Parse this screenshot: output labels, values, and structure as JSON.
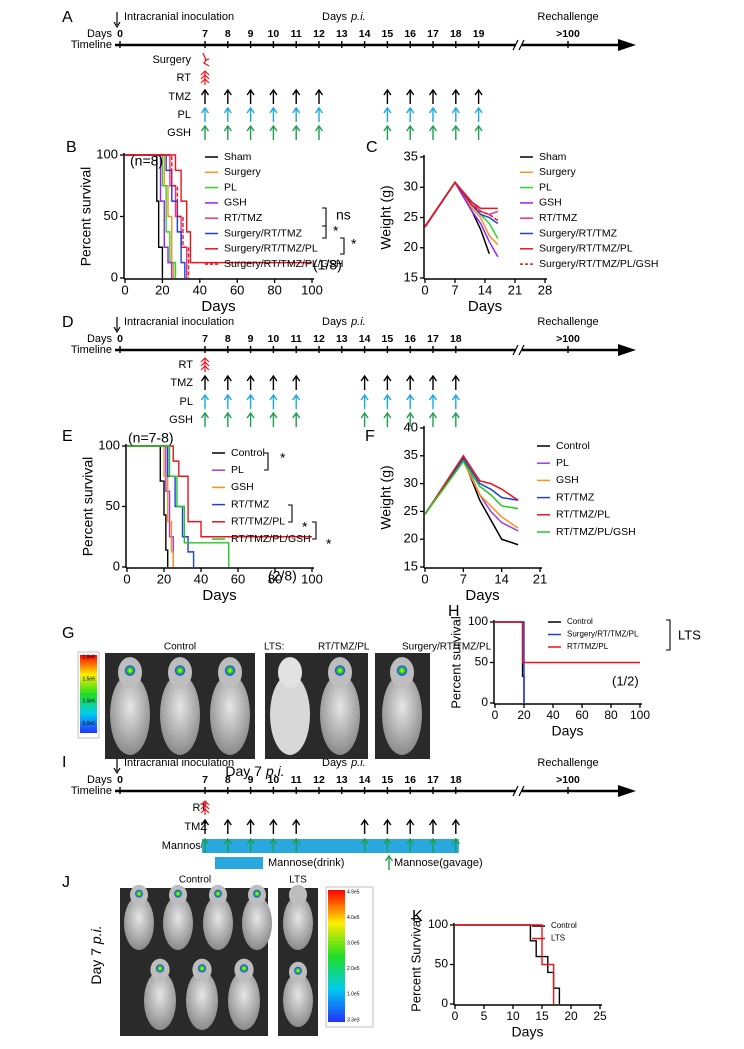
{
  "timelines": [
    {
      "label": "A",
      "start_note": "Intracranial inoculation",
      "center_title": "Days",
      "center_title_italic": "p.i.",
      "rechallenge": "Rechallenge",
      "days_row": "Days",
      "timeline_row": "Timeline",
      "ticks": [
        0,
        7,
        8,
        9,
        10,
        11,
        12,
        13,
        14,
        15,
        16,
        17,
        18,
        19,
        ">100"
      ],
      "rows": [
        {
          "label": "Surgery",
          "marker": "surgery",
          "color": "#e8141c",
          "days": [
            7
          ]
        },
        {
          "label": "RT",
          "marker": "double",
          "color": "#e8141c",
          "days": [
            7
          ]
        },
        {
          "label": "TMZ",
          "marker": "arrow",
          "color": "#000000",
          "days": [
            7,
            8,
            9,
            10,
            11,
            12,
            15,
            16,
            17,
            18,
            19
          ]
        },
        {
          "label": "PL",
          "marker": "arrow",
          "color": "#1aa7e0",
          "days": [
            7,
            8,
            9,
            10,
            11,
            12,
            15,
            16,
            17,
            18,
            19
          ]
        },
        {
          "label": "GSH",
          "marker": "arrow",
          "color": "#1e9e4e",
          "days": [
            7,
            8,
            9,
            10,
            11,
            12,
            15,
            16,
            17,
            18,
            19
          ]
        }
      ]
    },
    {
      "label": "D",
      "start_note": "Intracranial inoculation",
      "center_title": "Days",
      "center_title_italic": "p.i.",
      "rechallenge": "Rechallenge",
      "days_row": "Days",
      "timeline_row": "Timeline",
      "ticks": [
        0,
        7,
        8,
        9,
        10,
        11,
        12,
        13,
        14,
        15,
        16,
        17,
        18,
        ">100"
      ],
      "rows": [
        {
          "label": "RT",
          "marker": "double",
          "color": "#e8141c",
          "days": [
            7
          ]
        },
        {
          "label": "TMZ",
          "marker": "arrow",
          "color": "#000000",
          "days": [
            7,
            8,
            9,
            10,
            11,
            14,
            15,
            16,
            17,
            18
          ]
        },
        {
          "label": "PL",
          "marker": "arrow",
          "color": "#1aa7e0",
          "days": [
            7,
            8,
            9,
            10,
            11,
            14,
            15,
            16,
            17,
            18
          ]
        },
        {
          "label": "GSH",
          "marker": "arrow",
          "color": "#1e9e4e",
          "days": [
            7,
            8,
            9,
            10,
            11,
            14,
            15,
            16,
            17,
            18
          ]
        }
      ]
    },
    {
      "label": "I",
      "start_note": "Intracranial inoculation",
      "center_title": "Days",
      "center_title_italic": "p.i.",
      "rechallenge": "Rechallenge",
      "days_row": "Days",
      "timeline_row": "Timeline",
      "ticks": [
        0,
        7,
        8,
        9,
        10,
        11,
        12,
        13,
        14,
        15,
        16,
        17,
        18,
        ">100"
      ],
      "rows": [
        {
          "label": "RT",
          "marker": "double",
          "color": "#e8141c",
          "days": [
            7
          ]
        },
        {
          "label": "TMZ",
          "marker": "arrow",
          "color": "#000000",
          "days": [
            7,
            8,
            9,
            10,
            11,
            14,
            15,
            16,
            17,
            18
          ]
        },
        {
          "label": "Mannose",
          "marker": "arrow",
          "color": "#1e9e4e",
          "bar": [
            7,
            18
          ],
          "bar_color": "#29a8e0",
          "days": [
            7,
            8,
            9,
            10,
            11,
            14,
            15,
            16,
            17,
            18
          ]
        }
      ],
      "legend": [
        "Mannose(drink)",
        "Mannose(gavage)"
      ]
    }
  ],
  "chart_data": [
    {
      "label": "B",
      "type": "survival",
      "xlabel": "Days",
      "ylabel": "Percent survival",
      "xlim": [
        0,
        100
      ],
      "ylim": [
        0,
        100
      ],
      "xticks": [
        0,
        20,
        40,
        60,
        80,
        100
      ],
      "yticks": [
        0,
        50,
        100
      ],
      "annotations": [
        "(n=8)",
        "ns",
        "*",
        "*",
        "(1/8)"
      ],
      "series": [
        {
          "name": "Sham",
          "color": "#000000",
          "x": [
            0,
            15,
            17,
            18,
            20
          ],
          "values": [
            100,
            100,
            62.5,
            25,
            0
          ]
        },
        {
          "name": "Surgery",
          "color": "#f7941d",
          "x": [
            0,
            21,
            23,
            25,
            26
          ],
          "values": [
            100,
            75,
            50,
            12.5,
            0
          ]
        },
        {
          "name": "PL",
          "color": "#2bd92b",
          "x": [
            0,
            20,
            22,
            24,
            27
          ],
          "values": [
            100,
            75,
            37.5,
            12.5,
            0
          ]
        },
        {
          "name": "GSH",
          "color": "#a020f0",
          "x": [
            0,
            19,
            21,
            23,
            25
          ],
          "values": [
            100,
            62.5,
            25,
            12.5,
            0
          ]
        },
        {
          "name": "RT/TMZ",
          "color": "#e8318a",
          "x": [
            0,
            24,
            27,
            30,
            33
          ],
          "values": [
            100,
            75,
            50,
            25,
            0
          ]
        },
        {
          "name": "Surgery/RT/TMZ",
          "color": "#1f3fdc",
          "x": [
            0,
            22,
            25,
            28,
            30,
            32
          ],
          "values": [
            100,
            87.5,
            62.5,
            37.5,
            12.5,
            0
          ]
        },
        {
          "name": "Surgery/RT/TMZ/PL",
          "color": "#e8141c",
          "x": [
            0,
            27,
            30,
            33,
            35,
            100
          ],
          "values": [
            100,
            87.5,
            62.5,
            37.5,
            12.5,
            12.5
          ]
        },
        {
          "name": "Surgery/RT/TMZ/PL/GSH",
          "color": "#e8141c",
          "dash": true,
          "x": [
            0,
            25,
            28,
            31,
            34
          ],
          "values": [
            100,
            75,
            50,
            25,
            0
          ]
        }
      ]
    },
    {
      "label": "C",
      "type": "line",
      "xlabel": "Days",
      "ylabel": "Weight (g)",
      "xlim": [
        0,
        28
      ],
      "ylim": [
        15,
        35
      ],
      "xticks": [
        0,
        7,
        14,
        21,
        28
      ],
      "yticks": [
        15,
        20,
        25,
        30,
        35
      ],
      "series": [
        {
          "name": "Sham",
          "color": "#000000",
          "x": [
            0,
            7,
            11,
            13,
            15
          ],
          "values": [
            23.5,
            30.8,
            26,
            23,
            19
          ]
        },
        {
          "name": "Surgery",
          "color": "#f7941d",
          "x": [
            0,
            7,
            11,
            13,
            15,
            17
          ],
          "values": [
            23.5,
            30.8,
            26.5,
            25,
            22,
            20.5
          ]
        },
        {
          "name": "PL",
          "color": "#2bd92b",
          "x": [
            0,
            7,
            11,
            13,
            15,
            17
          ],
          "values": [
            23.4,
            30.8,
            27,
            25.5,
            24,
            21.5
          ]
        },
        {
          "name": "GSH",
          "color": "#a020f0",
          "x": [
            0,
            7,
            11,
            13,
            15,
            17
          ],
          "values": [
            23.5,
            30.8,
            26,
            24,
            21,
            18.5
          ]
        },
        {
          "name": "RT/TMZ",
          "color": "#e8318a",
          "x": [
            0,
            7,
            11,
            13,
            15,
            17
          ],
          "values": [
            23.4,
            30.8,
            27.5,
            26,
            25.5,
            26
          ]
        },
        {
          "name": "Surgery/RT/TMZ",
          "color": "#1f3fdc",
          "x": [
            0,
            7,
            11,
            13,
            15,
            17
          ],
          "values": [
            23.5,
            30.8,
            27,
            25.5,
            25,
            24
          ]
        },
        {
          "name": "Surgery/RT/TMZ/PL",
          "color": "#e8141c",
          "x": [
            0,
            7,
            11,
            13,
            15,
            17
          ],
          "values": [
            23.5,
            30.8,
            27.5,
            26.5,
            26.5,
            26.5
          ]
        },
        {
          "name": "Surgery/RT/TMZ/PL/GSH",
          "color": "#e8141c",
          "dash": true,
          "x": [
            0,
            7,
            11,
            13,
            15,
            17
          ],
          "values": [
            23.5,
            30.8,
            27,
            26,
            25.5,
            24.5
          ]
        }
      ]
    },
    {
      "label": "E",
      "type": "survival",
      "xlabel": "Days",
      "ylabel": "Percent survival",
      "xlim": [
        0,
        100
      ],
      "ylim": [
        0,
        100
      ],
      "xticks": [
        0,
        20,
        40,
        60,
        80,
        100
      ],
      "yticks": [
        0,
        50,
        100
      ],
      "annotations": [
        "(n=7-8)",
        "*",
        "*",
        "*",
        "(2/8)"
      ],
      "series": [
        {
          "name": "Control",
          "color": "#000000",
          "x": [
            0,
            18,
            20,
            21,
            22
          ],
          "values": [
            100,
            71,
            43,
            14,
            0
          ]
        },
        {
          "name": "PL",
          "color": "#a23be0",
          "x": [
            0,
            21,
            23,
            25
          ],
          "values": [
            100,
            62.5,
            25,
            0
          ]
        },
        {
          "name": "GSH",
          "color": "#f7941d",
          "x": [
            0,
            20,
            22,
            24,
            25
          ],
          "values": [
            100,
            75,
            37.5,
            12.5,
            0
          ]
        },
        {
          "name": "RT/TMZ",
          "color": "#1f3fdc",
          "x": [
            0,
            22,
            26,
            30,
            33,
            36
          ],
          "values": [
            100,
            75,
            50,
            25,
            12.5,
            0
          ]
        },
        {
          "name": "RT/TMZ/PL",
          "color": "#e8141c",
          "x": [
            0,
            25,
            28,
            33,
            40,
            100
          ],
          "values": [
            100,
            87.5,
            75,
            37.5,
            25,
            25
          ]
        },
        {
          "name": "RT/TMZ/PL/GSH",
          "color": "#22c922",
          "x": [
            0,
            23,
            27,
            31,
            55
          ],
          "values": [
            100,
            75,
            50,
            20,
            0
          ]
        }
      ]
    },
    {
      "label": "F",
      "type": "line",
      "xlabel": "Days",
      "ylabel": "Weight (g)",
      "xlim": [
        0,
        21
      ],
      "ylim": [
        15,
        40
      ],
      "xticks": [
        0,
        7,
        14,
        21
      ],
      "yticks": [
        15,
        20,
        25,
        30,
        35,
        40
      ],
      "series": [
        {
          "name": "Control",
          "color": "#000000",
          "x": [
            0,
            7,
            10,
            12,
            14,
            17
          ],
          "values": [
            24.5,
            34.5,
            27,
            23.5,
            20,
            19
          ]
        },
        {
          "name": "PL",
          "color": "#a23be0",
          "x": [
            0,
            7,
            10,
            12,
            14,
            17
          ],
          "values": [
            24.5,
            34.5,
            28,
            25,
            23,
            21.5
          ]
        },
        {
          "name": "GSH",
          "color": "#f7941d",
          "x": [
            0,
            7,
            10,
            12,
            14,
            17
          ],
          "values": [
            24.5,
            34,
            28,
            26,
            24,
            22
          ]
        },
        {
          "name": "RT/TMZ",
          "color": "#1f3fdc",
          "x": [
            0,
            7,
            10,
            12,
            14,
            17
          ],
          "values": [
            24.5,
            34.5,
            30,
            29,
            27.5,
            27
          ]
        },
        {
          "name": "RT/TMZ/PL",
          "color": "#e8141c",
          "x": [
            0,
            7,
            10,
            12,
            14,
            17
          ],
          "values": [
            24.5,
            35,
            30.5,
            30,
            29,
            27
          ]
        },
        {
          "name": "RT/TMZ/PL/GSH",
          "color": "#22c922",
          "x": [
            0,
            7,
            10,
            12,
            14,
            17
          ],
          "values": [
            24.5,
            34,
            29.5,
            28,
            26,
            25.5
          ]
        }
      ]
    },
    {
      "label": "H",
      "type": "survival",
      "xlabel": "Days",
      "ylabel": "Percent survival",
      "xlim": [
        0,
        100
      ],
      "ylim": [
        0,
        100
      ],
      "xticks": [
        0,
        20,
        40,
        60,
        80,
        100
      ],
      "yticks": [
        0,
        50,
        100
      ],
      "annotations": [
        "LTS",
        "(1/2)"
      ],
      "series": [
        {
          "name": "Control",
          "color": "#000000",
          "x": [
            0,
            17,
            19,
            20
          ],
          "values": [
            100,
            100,
            33,
            0
          ]
        },
        {
          "name": "Surgery/RT/TMZ/PL",
          "color": "#1f3fdc",
          "x": [
            0,
            18,
            20
          ],
          "values": [
            100,
            100,
            0
          ]
        },
        {
          "name": "RT/TMZ/PL",
          "color": "#e8141c",
          "x": [
            0,
            19,
            100
          ],
          "values": [
            100,
            50,
            50
          ]
        }
      ]
    },
    {
      "label": "K",
      "type": "survival",
      "xlabel": "Days",
      "ylabel": "Percent Survival",
      "xlim": [
        0,
        25
      ],
      "ylim": [
        0,
        100
      ],
      "xticks": [
        0,
        5,
        10,
        15,
        20,
        25
      ],
      "yticks": [
        0,
        50,
        100
      ],
      "series": [
        {
          "name": "Control",
          "color": "#000000",
          "x": [
            0,
            13,
            14,
            16,
            17,
            18
          ],
          "values": [
            100,
            80,
            60,
            40,
            20,
            0
          ]
        },
        {
          "name": "LTS",
          "color": "#e8141c",
          "x": [
            0,
            15,
            17
          ],
          "values": [
            100,
            50,
            0
          ]
        }
      ]
    }
  ],
  "images": [
    {
      "label": "G",
      "captions": [
        "Control",
        "LTS:",
        "RT/TMZ/PL",
        "Surgery/RT/TMZ/PL"
      ],
      "footer": "Day 7",
      "footer_italic": "p.i.",
      "colorbar": [
        "1.9e6",
        "1.5e6",
        "1.0e6",
        "5.0e5"
      ]
    },
    {
      "label": "J",
      "captions": [
        "Control",
        "LTS"
      ],
      "footer": "Day 7",
      "footer_italic": "p.i.",
      "colorbar": [
        "4.9e5",
        "4.0e5",
        "3.0e5",
        "2.0e5",
        "1.0e5",
        "3.3e3"
      ]
    }
  ]
}
